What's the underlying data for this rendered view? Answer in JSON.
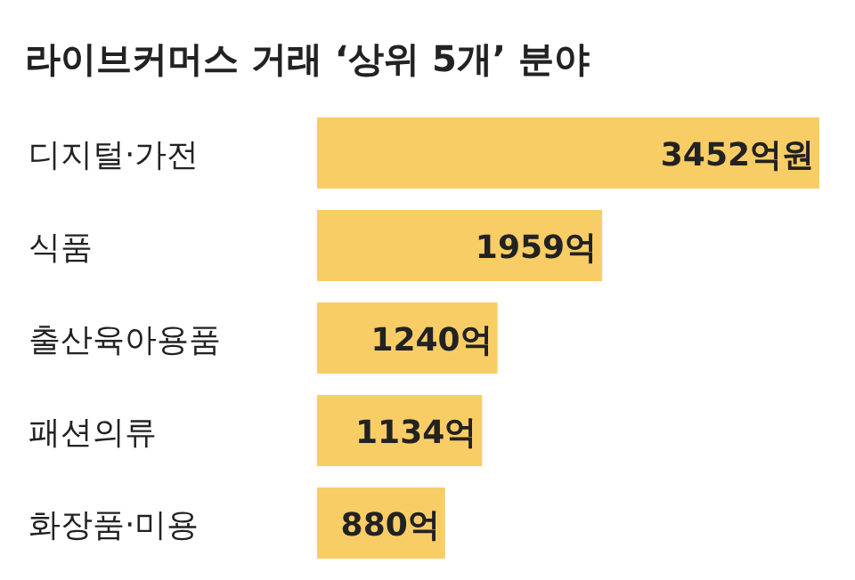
{
  "chart_data": {
    "type": "bar",
    "orientation": "horizontal",
    "title": "라이브커머스 거래 ‘상위 5개’ 분야",
    "categories": [
      "디지털·가전",
      "식품",
      "출산육아용품",
      "패션의류",
      "화장품·미용"
    ],
    "values": [
      3452,
      1959,
      1240,
      1134,
      880
    ],
    "value_labels": [
      "3452억원",
      "1959억",
      "1240억",
      "1134억",
      "880억"
    ],
    "color": "#f9cd66"
  }
}
